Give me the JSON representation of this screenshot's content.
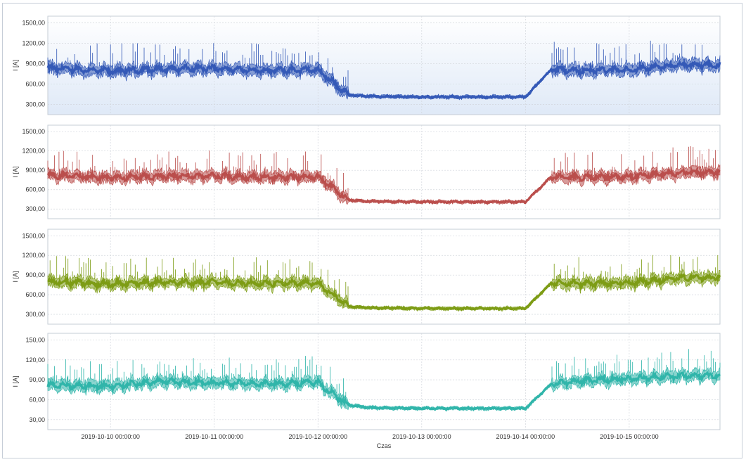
{
  "chart_data": [
    {
      "type": "line",
      "ylabel": "I [A]",
      "ylim": [
        150,
        1600
      ],
      "yticks": [
        "1500,00",
        "1200,00",
        "900,00",
        "600,00",
        "300,00"
      ],
      "ytick_values": [
        1500,
        1200,
        900,
        600,
        300
      ],
      "grid": true,
      "background": "gradient",
      "color": "#2f55b5",
      "series": [
        {
          "x": [
            "2019-10-09 12:00",
            "2019-10-10 00:00",
            "2019-10-10 12:00",
            "2019-10-11 00:00",
            "2019-10-11 12:00",
            "2019-10-12 00:00",
            "2019-10-12 07:00",
            "2019-10-12 12:00",
            "2019-10-13 00:00",
            "2019-10-13 12:00",
            "2019-10-14 00:00",
            "2019-10-14 06:00",
            "2019-10-14 12:00",
            "2019-10-15 00:00",
            "2019-10-15 12:00"
          ],
          "values": [
            830,
            790,
            820,
            830,
            800,
            810,
            440,
            420,
            410,
            410,
            410,
            820,
            800,
            810,
            880
          ]
        }
      ]
    },
    {
      "type": "line",
      "ylabel": "I [A]",
      "ylim": [
        150,
        1600
      ],
      "yticks": [
        "1500,00",
        "1200,00",
        "900,00",
        "600,00",
        "300,00"
      ],
      "ytick_values": [
        1500,
        1200,
        900,
        600,
        300
      ],
      "grid": true,
      "background": "white",
      "color": "#b84a48",
      "series": [
        {
          "x": [
            "2019-10-09 12:00",
            "2019-10-10 00:00",
            "2019-10-10 12:00",
            "2019-10-11 00:00",
            "2019-10-11 12:00",
            "2019-10-12 00:00",
            "2019-10-12 07:00",
            "2019-10-12 12:00",
            "2019-10-13 00:00",
            "2019-10-13 12:00",
            "2019-10-14 00:00",
            "2019-10-14 06:00",
            "2019-10-14 12:00",
            "2019-10-15 00:00",
            "2019-10-15 12:00"
          ],
          "values": [
            820,
            780,
            810,
            810,
            790,
            800,
            440,
            420,
            410,
            410,
            410,
            800,
            790,
            800,
            870
          ]
        }
      ]
    },
    {
      "type": "line",
      "ylabel": "I [A]",
      "ylim": [
        150,
        1600
      ],
      "yticks": [
        "1500,00",
        "1200,00",
        "900,00",
        "600,00",
        "300,00"
      ],
      "ytick_values": [
        1500,
        1200,
        900,
        600,
        300
      ],
      "grid": true,
      "background": "white",
      "color": "#7a9a10",
      "series": [
        {
          "x": [
            "2019-10-09 12:00",
            "2019-10-10 00:00",
            "2019-10-10 12:00",
            "2019-10-11 00:00",
            "2019-10-11 12:00",
            "2019-10-12 00:00",
            "2019-10-12 07:00",
            "2019-10-12 12:00",
            "2019-10-13 00:00",
            "2019-10-13 12:00",
            "2019-10-14 00:00",
            "2019-10-14 06:00",
            "2019-10-14 12:00",
            "2019-10-15 00:00",
            "2019-10-15 12:00"
          ],
          "values": [
            800,
            760,
            790,
            790,
            770,
            780,
            420,
            400,
            390,
            390,
            390,
            780,
            770,
            780,
            860
          ]
        }
      ]
    },
    {
      "type": "line",
      "ylabel": "I [A]",
      "xlabel": "Czas",
      "ylim": [
        15,
        160
      ],
      "yticks": [
        "150,00",
        "120,00",
        "90,00",
        "60,00",
        "30,00"
      ],
      "ytick_values": [
        150,
        120,
        90,
        60,
        30
      ],
      "xticks": [
        "2019-10-10 00:00:00",
        "2019-10-11 00:00:00",
        "2019-10-12 00:00:00",
        "2019-10-13 00:00:00",
        "2019-10-14 00:00:00",
        "2019-10-15 00:00:00"
      ],
      "grid": true,
      "background": "white",
      "color": "#2bb3a8",
      "series": [
        {
          "x": [
            "2019-10-09 12:00",
            "2019-10-10 00:00",
            "2019-10-10 12:00",
            "2019-10-11 00:00",
            "2019-10-11 12:00",
            "2019-10-12 00:00",
            "2019-10-12 07:00",
            "2019-10-12 12:00",
            "2019-10-13 00:00",
            "2019-10-13 12:00",
            "2019-10-14 00:00",
            "2019-10-14 06:00",
            "2019-10-14 12:00",
            "2019-10-15 00:00",
            "2019-10-15 12:00"
          ],
          "values": [
            82,
            80,
            88,
            85,
            84,
            86,
            52,
            48,
            47,
            47,
            47,
            84,
            88,
            92,
            96
          ]
        }
      ]
    }
  ]
}
